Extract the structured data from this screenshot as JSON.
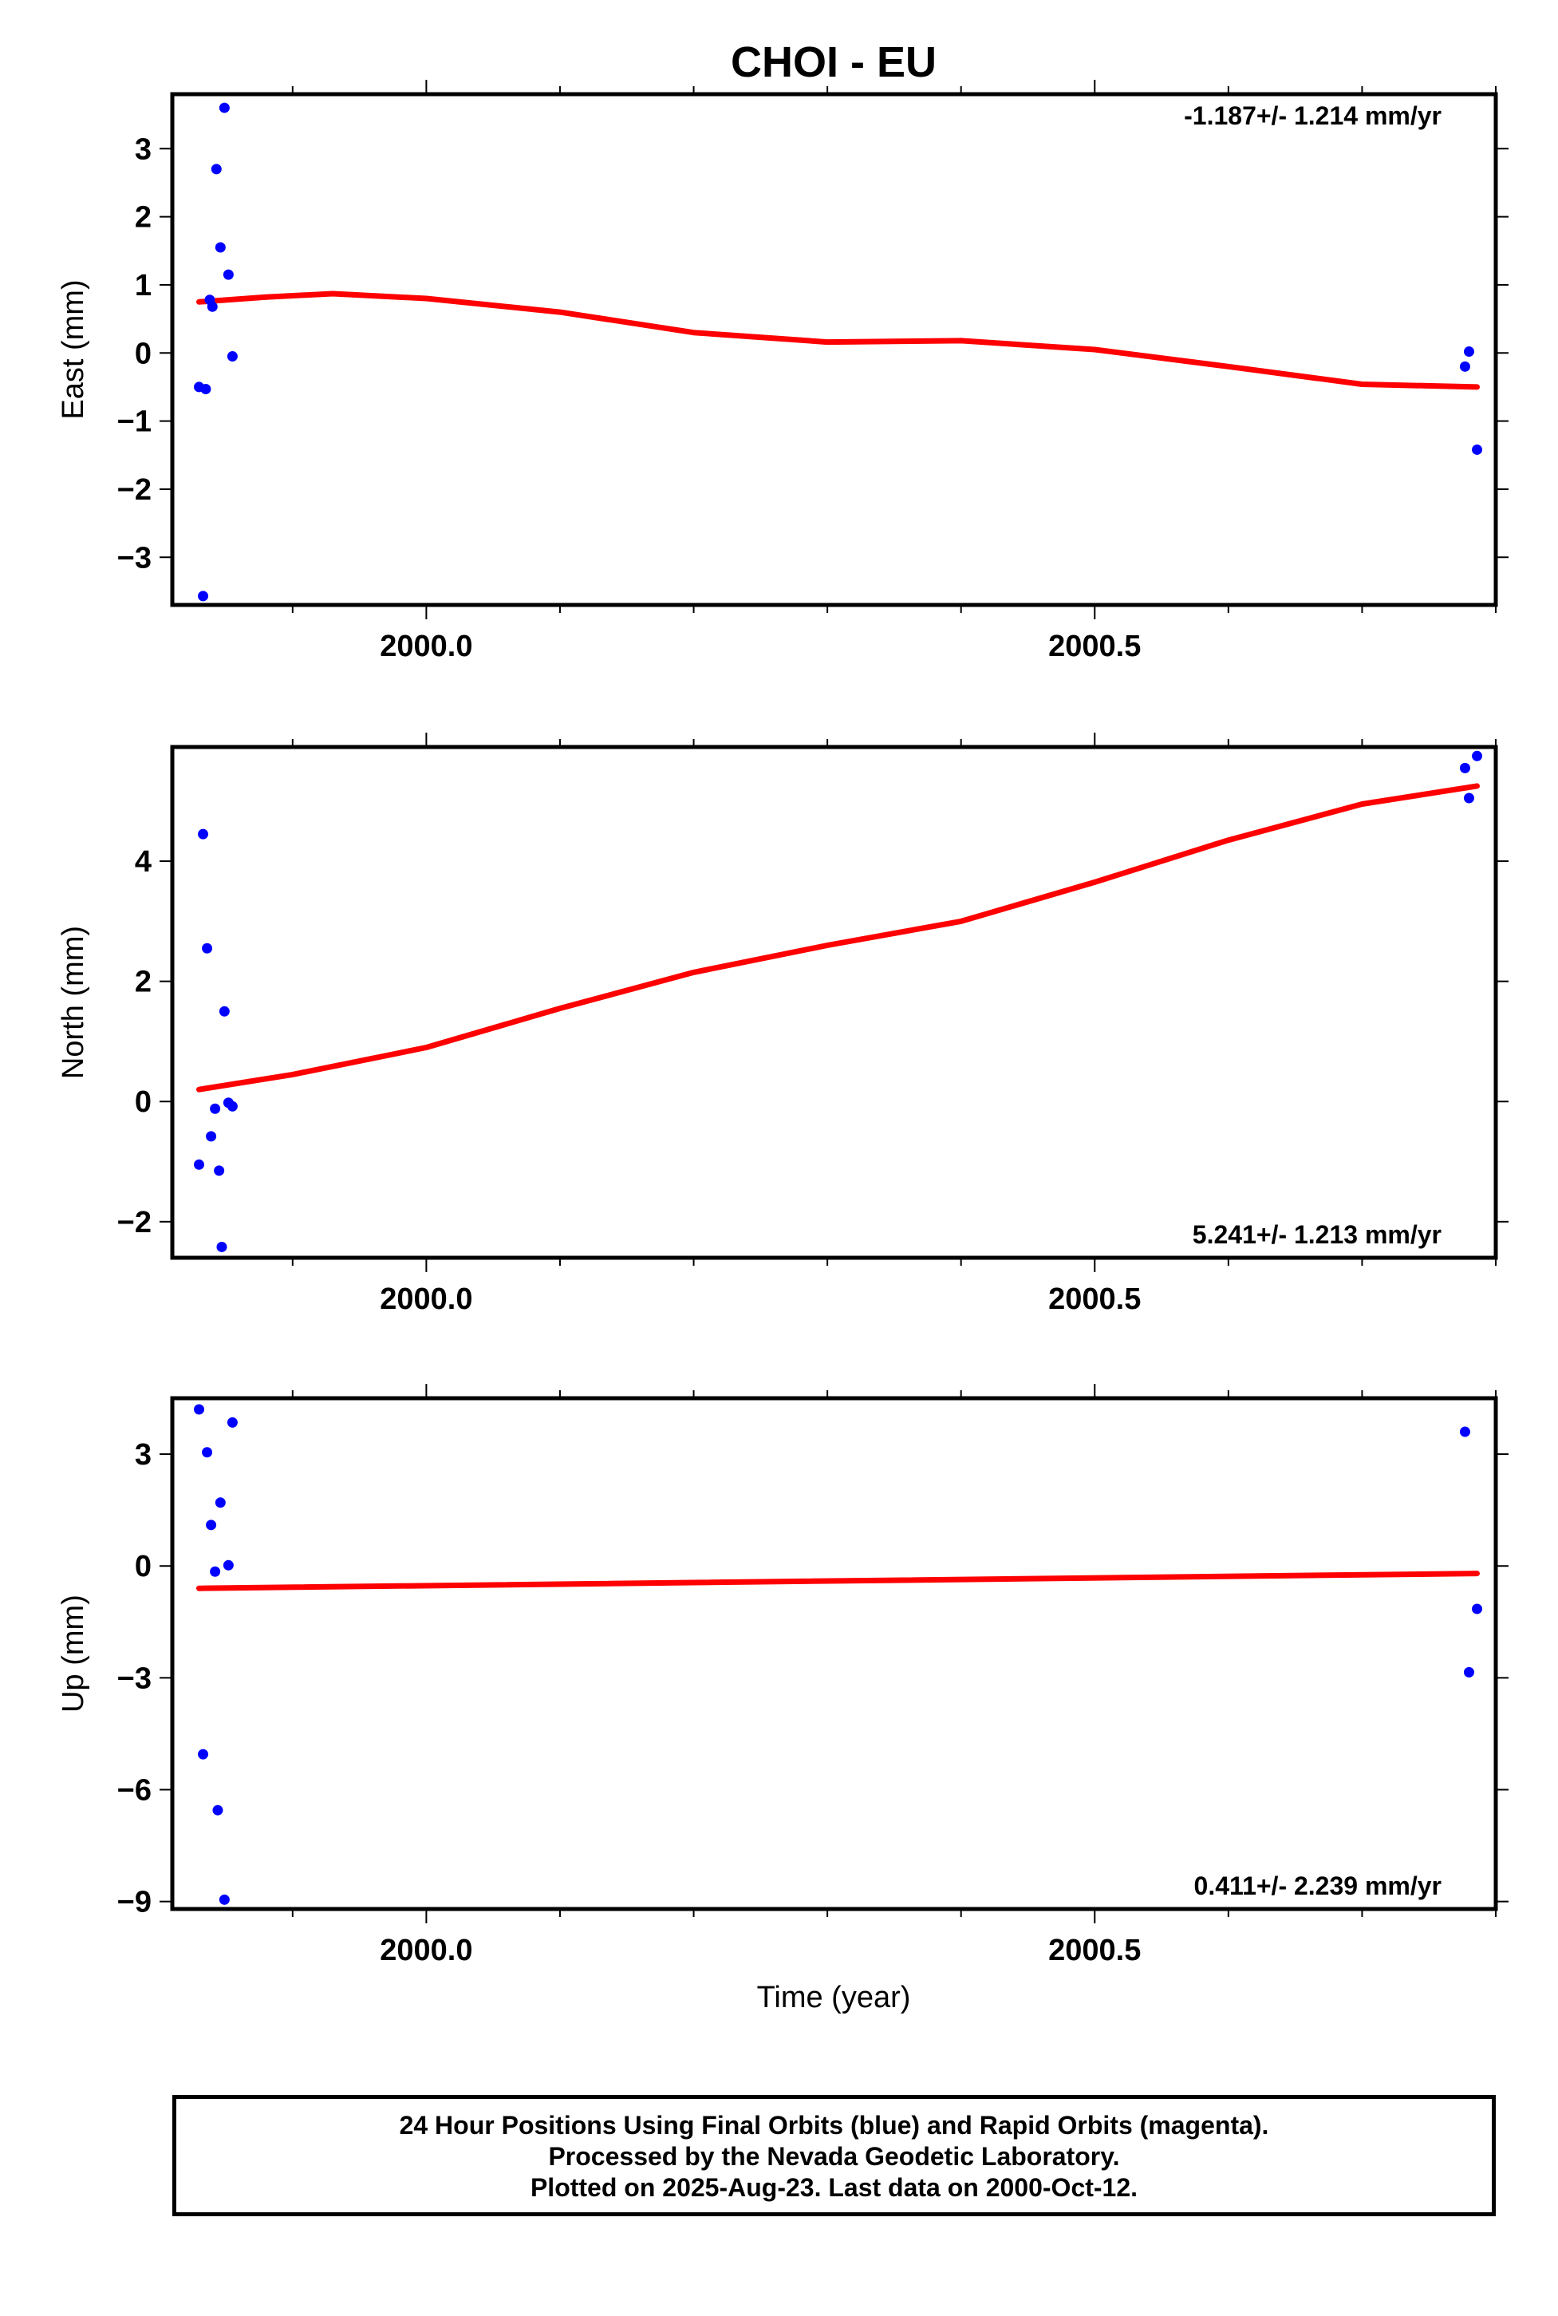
{
  "title": "CHOI - EU",
  "x_label": "Time (year)",
  "footer": {
    "line1": "24 Hour Positions Using Final Orbits (blue) and Rapid Orbits (magenta).",
    "line2": "Processed by the Nevada Geodetic Laboratory.",
    "line3": "Plotted on 2025-Aug-23. Last data on 2000-Oct-12."
  },
  "colors": {
    "data": "#0000ff",
    "fit": "#ff0000",
    "frame": "#000000"
  },
  "chart_data": [
    {
      "type": "scatter",
      "panel": "east",
      "ylabel": "East (mm)",
      "rate_text": "-1.187+/- 1.214 mm/yr",
      "xlim": [
        1999.81,
        2000.8
      ],
      "ylim": [
        -3.7,
        3.8
      ],
      "x_ticks": [
        2000.0,
        2000.5
      ],
      "x_tick_labels": [
        "2000.0",
        "2000.5"
      ],
      "y_ticks": [
        -3,
        -2,
        -1,
        0,
        1,
        2,
        3
      ],
      "y_tick_labels": [
        "−3",
        "−2",
        "−1",
        "0",
        "1",
        "2",
        "3"
      ],
      "points": [
        [
          1999.83,
          -0.5
        ],
        [
          1999.833,
          -3.57
        ],
        [
          1999.835,
          -0.53
        ],
        [
          1999.838,
          0.78
        ],
        [
          1999.84,
          0.68
        ],
        [
          1999.843,
          2.7
        ],
        [
          1999.846,
          1.55
        ],
        [
          1999.849,
          3.6
        ],
        [
          1999.852,
          1.15
        ],
        [
          1999.855,
          -0.05
        ],
        [
          2000.777,
          -0.2
        ],
        [
          2000.78,
          0.02
        ],
        [
          2000.786,
          -1.42
        ]
      ],
      "fit": [
        [
          1999.83,
          0.75
        ],
        [
          1999.88,
          0.82
        ],
        [
          1999.93,
          0.87
        ],
        [
          2000.0,
          0.8
        ],
        [
          2000.1,
          0.6
        ],
        [
          2000.2,
          0.3
        ],
        [
          2000.3,
          0.16
        ],
        [
          2000.4,
          0.18
        ],
        [
          2000.5,
          0.05
        ],
        [
          2000.6,
          -0.2
        ],
        [
          2000.7,
          -0.46
        ],
        [
          2000.786,
          -0.5
        ]
      ]
    },
    {
      "type": "scatter",
      "panel": "north",
      "ylabel": "North (mm)",
      "rate_text": "5.241+/- 1.213 mm/yr",
      "xlim": [
        1999.81,
        2000.8
      ],
      "ylim": [
        -2.6,
        5.9
      ],
      "x_ticks": [
        2000.0,
        2000.5
      ],
      "x_tick_labels": [
        "2000.0",
        "2000.5"
      ],
      "y_ticks": [
        -2,
        0,
        2,
        4
      ],
      "y_tick_labels": [
        "−2",
        "0",
        "2",
        "4"
      ],
      "points": [
        [
          1999.83,
          -1.05
        ],
        [
          1999.833,
          4.45
        ],
        [
          1999.836,
          2.55
        ],
        [
          1999.839,
          -0.58
        ],
        [
          1999.842,
          -0.12
        ],
        [
          1999.845,
          -1.15
        ],
        [
          1999.847,
          -2.42
        ],
        [
          1999.849,
          1.5
        ],
        [
          1999.852,
          -0.02
        ],
        [
          1999.855,
          -0.08
        ],
        [
          2000.777,
          5.55
        ],
        [
          2000.78,
          5.05
        ],
        [
          2000.786,
          5.75
        ]
      ],
      "fit": [
        [
          1999.83,
          0.2
        ],
        [
          1999.9,
          0.45
        ],
        [
          2000.0,
          0.9
        ],
        [
          2000.1,
          1.55
        ],
        [
          2000.2,
          2.15
        ],
        [
          2000.3,
          2.6
        ],
        [
          2000.4,
          3.0
        ],
        [
          2000.5,
          3.65
        ],
        [
          2000.6,
          4.35
        ],
        [
          2000.7,
          4.95
        ],
        [
          2000.786,
          5.25
        ]
      ]
    },
    {
      "type": "scatter",
      "panel": "up",
      "ylabel": "Up (mm)",
      "rate_text": "0.411+/- 2.239 mm/yr",
      "xlim": [
        1999.81,
        2000.8
      ],
      "ylim": [
        -9.2,
        4.5
      ],
      "x_ticks": [
        2000.0,
        2000.5
      ],
      "x_tick_labels": [
        "2000.0",
        "2000.5"
      ],
      "y_ticks": [
        -9,
        -6,
        -3,
        0,
        3
      ],
      "y_tick_labels": [
        "−9",
        "−6",
        "−3",
        "0",
        "3"
      ],
      "points": [
        [
          1999.83,
          4.2
        ],
        [
          1999.833,
          -5.05
        ],
        [
          1999.836,
          3.05
        ],
        [
          1999.839,
          1.1
        ],
        [
          1999.842,
          -0.15
        ],
        [
          1999.844,
          -6.55
        ],
        [
          1999.846,
          1.7
        ],
        [
          1999.849,
          -8.95
        ],
        [
          1999.852,
          0.02
        ],
        [
          1999.855,
          3.85
        ],
        [
          2000.777,
          3.6
        ],
        [
          2000.78,
          -2.85
        ],
        [
          2000.786,
          -1.15
        ]
      ],
      "fit": [
        [
          1999.83,
          -0.6
        ],
        [
          2000.786,
          -0.2
        ]
      ]
    }
  ]
}
